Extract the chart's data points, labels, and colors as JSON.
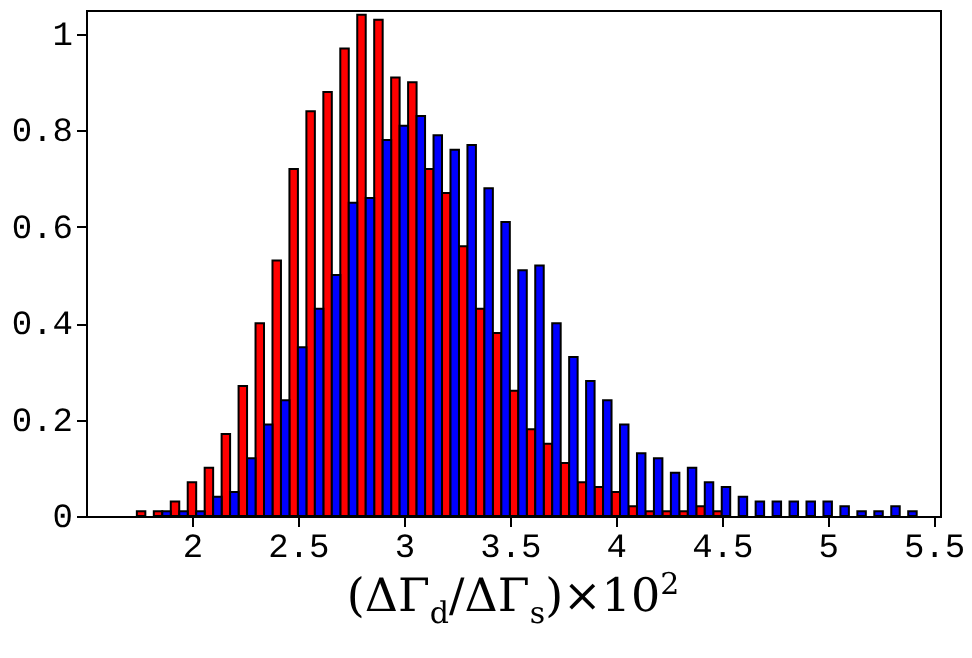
{
  "chart_data": {
    "type": "histogram",
    "xlabel": "(ΔΓ$_{d}$/ΔΓ$_{s}$)×10$^{2}$",
    "bins": [
      1.58,
      1.66,
      1.74,
      1.82,
      1.9,
      1.98,
      2.06,
      2.14,
      2.22,
      2.3,
      2.38,
      2.46,
      2.54,
      2.62,
      2.7,
      2.78,
      2.86,
      2.94,
      3.02,
      3.1,
      3.18,
      3.26,
      3.34,
      3.42,
      3.5,
      3.58,
      3.66,
      3.74,
      3.82,
      3.9,
      3.98,
      4.06,
      4.14,
      4.22,
      4.3,
      4.38,
      4.46,
      4.54,
      4.62,
      4.7,
      4.78,
      4.86,
      4.94,
      5.02,
      5.1,
      5.18,
      5.26,
      5.34,
      5.42,
      5.5
    ],
    "series": [
      {
        "color": "#ff0000",
        "values": [
          0,
          0,
          0.01,
          0.01,
          0.03,
          0.07,
          0.1,
          0.17,
          0.27,
          0.4,
          0.53,
          0.72,
          0.84,
          0.88,
          0.97,
          1.04,
          1.03,
          0.91,
          0.9,
          0.72,
          0.67,
          0.56,
          0.43,
          0.38,
          0.26,
          0.18,
          0.15,
          0.11,
          0.07,
          0.06,
          0.05,
          0.02,
          0.01,
          0.01,
          0.01,
          0.02,
          0.01,
          0,
          0,
          0,
          0,
          0,
          0,
          0,
          0,
          0,
          0,
          0,
          0
        ]
      },
      {
        "color": "#0000ff",
        "values": [
          0,
          0,
          0,
          0.01,
          0.01,
          0.01,
          0.04,
          0.05,
          0.12,
          0.19,
          0.24,
          0.35,
          0.43,
          0.5,
          0.65,
          0.66,
          0.78,
          0.81,
          0.83,
          0.79,
          0.76,
          0.77,
          0.68,
          0.61,
          0.51,
          0.52,
          0.4,
          0.33,
          0.28,
          0.24,
          0.19,
          0.13,
          0.12,
          0.09,
          0.1,
          0.07,
          0.06,
          0.04,
          0.03,
          0.03,
          0.03,
          0.03,
          0.03,
          0.02,
          0.01,
          0.01,
          0.02,
          0.01,
          0
        ]
      }
    ],
    "xlim": [
      1.5,
      5.53
    ],
    "xticks": [
      2,
      {
        "value": 2.5,
        "label": "2.5"
      },
      3,
      {
        "value": 3.5,
        "label": "3.5"
      },
      4,
      {
        "value": 4.5,
        "label": "4.5"
      },
      5,
      {
        "value": 5.5,
        "label": "5.5"
      }
    ],
    "ylim": [
      0,
      1.05
    ],
    "yticks": [
      0,
      {
        "value": 0.2,
        "label": "0.2"
      },
      {
        "value": 0.4,
        "label": "0.4"
      },
      {
        "value": 0.6,
        "label": "0.6"
      },
      {
        "value": 0.8,
        "label": "0.8"
      },
      1
    ],
    "grid": false
  }
}
